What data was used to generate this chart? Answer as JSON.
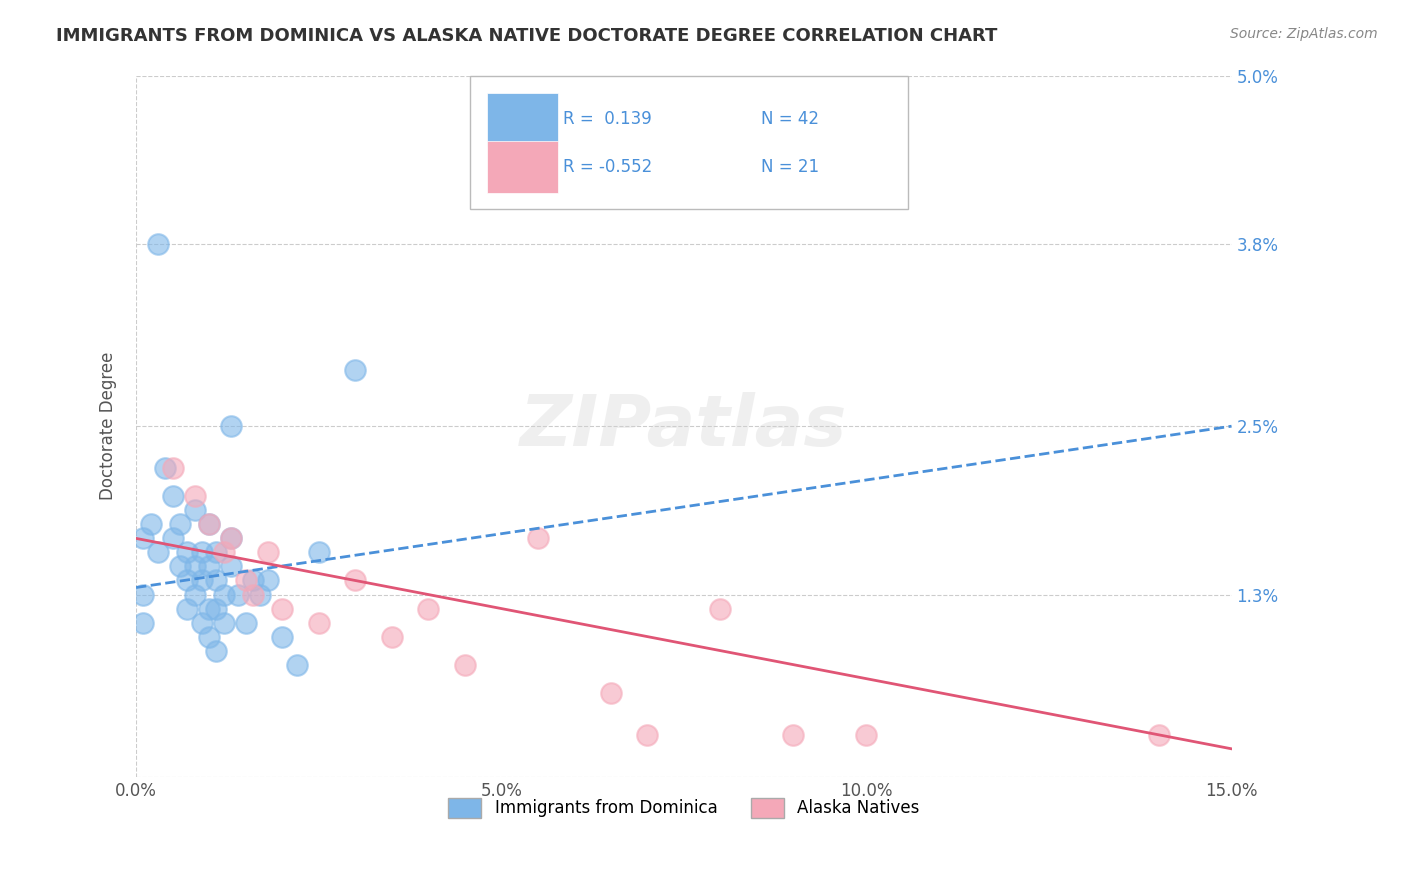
{
  "title": "IMMIGRANTS FROM DOMINICA VS ALASKA NATIVE DOCTORATE DEGREE CORRELATION CHART",
  "source": "Source: ZipAtlas.com",
  "ylabel_label": "Doctorate Degree",
  "xlim": [
    0.0,
    0.15
  ],
  "ylim": [
    0.0,
    0.05
  ],
  "xticks": [
    0.0,
    0.05,
    0.1,
    0.15
  ],
  "xticklabels": [
    "0.0%",
    "5.0%",
    "10.0%",
    "15.0%"
  ],
  "right_ytick_positions": [
    0.0,
    0.013,
    0.025,
    0.038,
    0.05
  ],
  "right_yticklabels": [
    "",
    "1.3%",
    "2.5%",
    "3.8%",
    "5.0%"
  ],
  "blue_color": "#7EB6E8",
  "pink_color": "#F4A8B8",
  "trend_blue": "#4A90D9",
  "trend_pink": "#E05575",
  "blue_scatter": [
    [
      0.002,
      0.018
    ],
    [
      0.003,
      0.016
    ],
    [
      0.004,
      0.022
    ],
    [
      0.005,
      0.02
    ],
    [
      0.005,
      0.017
    ],
    [
      0.006,
      0.015
    ],
    [
      0.006,
      0.018
    ],
    [
      0.007,
      0.016
    ],
    [
      0.007,
      0.014
    ],
    [
      0.007,
      0.012
    ],
    [
      0.008,
      0.019
    ],
    [
      0.008,
      0.015
    ],
    [
      0.008,
      0.013
    ],
    [
      0.009,
      0.014
    ],
    [
      0.009,
      0.011
    ],
    [
      0.009,
      0.016
    ],
    [
      0.01,
      0.018
    ],
    [
      0.01,
      0.015
    ],
    [
      0.01,
      0.012
    ],
    [
      0.01,
      0.01
    ],
    [
      0.011,
      0.016
    ],
    [
      0.011,
      0.014
    ],
    [
      0.011,
      0.012
    ],
    [
      0.011,
      0.009
    ],
    [
      0.012,
      0.013
    ],
    [
      0.012,
      0.011
    ],
    [
      0.013,
      0.025
    ],
    [
      0.013,
      0.017
    ],
    [
      0.013,
      0.015
    ],
    [
      0.014,
      0.013
    ],
    [
      0.015,
      0.011
    ],
    [
      0.016,
      0.014
    ],
    [
      0.017,
      0.013
    ],
    [
      0.018,
      0.014
    ],
    [
      0.02,
      0.01
    ],
    [
      0.022,
      0.008
    ],
    [
      0.025,
      0.016
    ],
    [
      0.03,
      0.029
    ],
    [
      0.001,
      0.013
    ],
    [
      0.001,
      0.011
    ],
    [
      0.001,
      0.017
    ],
    [
      0.003,
      0.038
    ]
  ],
  "pink_scatter": [
    [
      0.005,
      0.022
    ],
    [
      0.008,
      0.02
    ],
    [
      0.01,
      0.018
    ],
    [
      0.012,
      0.016
    ],
    [
      0.013,
      0.017
    ],
    [
      0.015,
      0.014
    ],
    [
      0.016,
      0.013
    ],
    [
      0.018,
      0.016
    ],
    [
      0.02,
      0.012
    ],
    [
      0.025,
      0.011
    ],
    [
      0.03,
      0.014
    ],
    [
      0.035,
      0.01
    ],
    [
      0.04,
      0.012
    ],
    [
      0.045,
      0.008
    ],
    [
      0.055,
      0.017
    ],
    [
      0.065,
      0.006
    ],
    [
      0.07,
      0.003
    ],
    [
      0.08,
      0.012
    ],
    [
      0.09,
      0.003
    ],
    [
      0.1,
      0.003
    ],
    [
      0.14,
      0.003
    ]
  ],
  "watermark": "ZIPatlas",
  "background_color": "#FFFFFF",
  "grid_color": "#CCCCCC",
  "blue_trend_start": 0.0135,
  "blue_trend_end": 0.025,
  "pink_trend_start": 0.017,
  "pink_trend_end": 0.002
}
